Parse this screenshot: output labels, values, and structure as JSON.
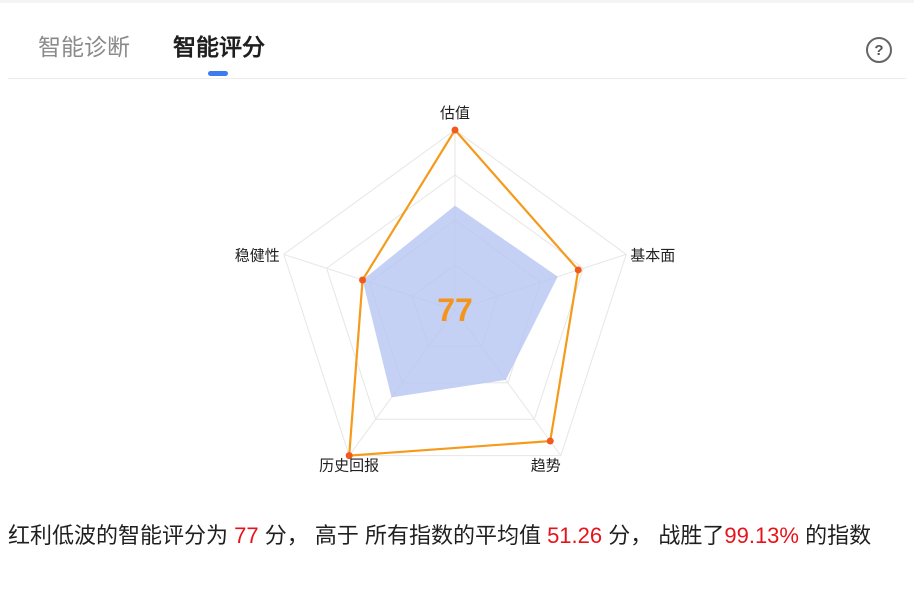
{
  "tabs": [
    {
      "label": "智能诊断",
      "active": false
    },
    {
      "label": "智能评分",
      "active": true
    }
  ],
  "help_icon": "question-circle-icon",
  "chart_data": {
    "type": "radar",
    "center_value": "77",
    "axes": [
      "估值",
      "基本面",
      "趋势",
      "历史回报",
      "稳健性"
    ],
    "range": [
      0,
      100
    ],
    "series": [
      {
        "name": "红利低波",
        "color": "#f59a1a",
        "values": [
          100,
          72,
          90,
          100,
          54
        ]
      },
      {
        "name": "所有指数平均",
        "color": "#b5c6f2",
        "values": [
          58,
          60,
          48,
          60,
          54
        ]
      }
    ],
    "grid_levels": 4
  },
  "summary": {
    "t1": "红利低波的智能评分为 ",
    "score": "77",
    "t2": " 分， 高于 所有指数的平均值 ",
    "avg": "51.26",
    "t3": " 分， 战胜了",
    "beat": "99.13%",
    "t4": " 的指数"
  },
  "colors": {
    "accent": "#3d7cf0",
    "score": "#f5941d",
    "highlight": "#e8131a"
  }
}
